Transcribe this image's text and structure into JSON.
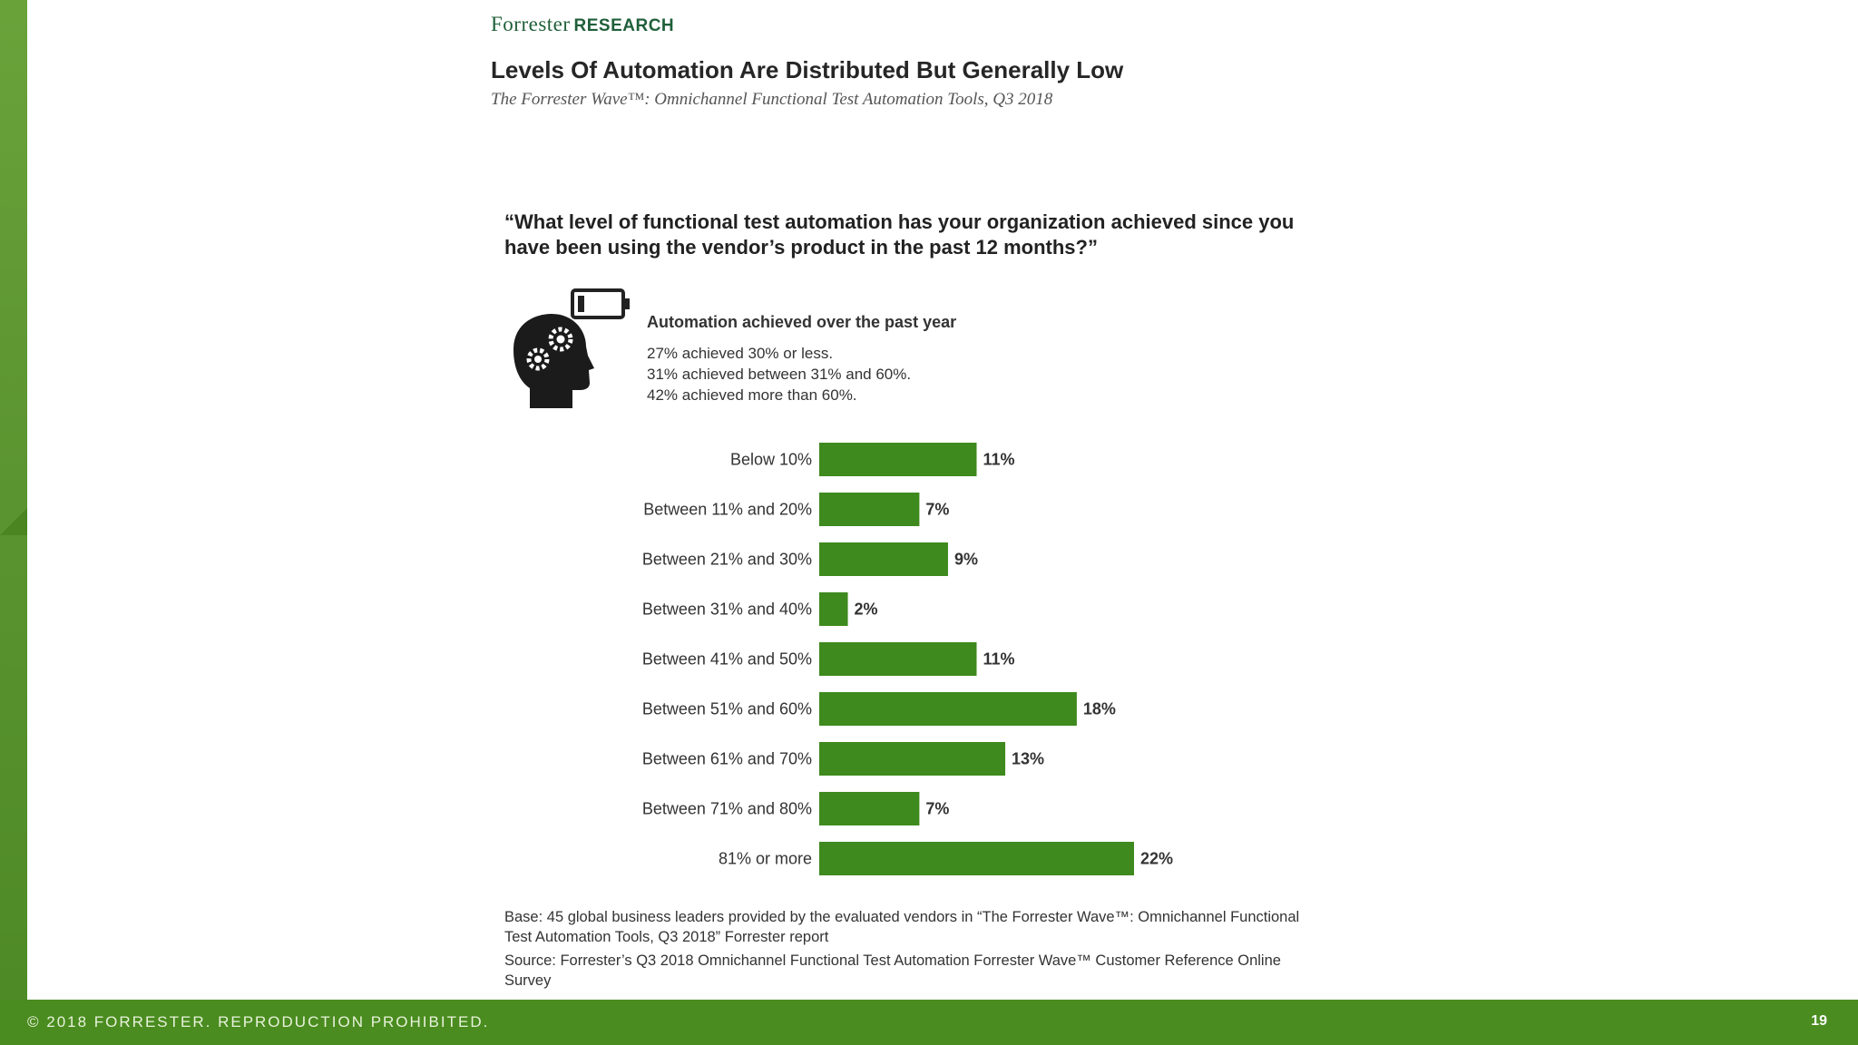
{
  "brand": {
    "name": "Forrester",
    "suffix": "RESEARCH"
  },
  "slide": {
    "title": "Levels Of Automation Are Distributed But Generally Low",
    "subtitle": "The Forrester Wave™: Omnichannel Functional Test Automation Tools, Q3 2018"
  },
  "question": "“What level of functional test automation has your organization achieved since you have been using the vendor’s product in the past 12 months?”",
  "summary": {
    "title": "Automation achieved over the past year",
    "lines": [
      "27% achieved 30% or less.",
      "31% achieved between 31% and 60%.",
      "42% achieved more than 60%."
    ]
  },
  "chart_data": {
    "type": "bar",
    "orientation": "horizontal",
    "categories": [
      "Below 10%",
      "Between 11% and 20%",
      "Between 21% and 30%",
      "Between 31% and 40%",
      "Between 41% and 50%",
      "Between 51% and 60%",
      "Between 61% and 70%",
      "Between 71% and 80%",
      "81% or more"
    ],
    "values": [
      11,
      7,
      9,
      2,
      11,
      18,
      13,
      7,
      22
    ],
    "value_labels": [
      "11%",
      "7%",
      "9%",
      "2%",
      "11%",
      "18%",
      "13%",
      "7%",
      "22%"
    ],
    "xlim": [
      0,
      22
    ],
    "bar_color": "#3e8a1e"
  },
  "notes": {
    "base": "Base: 45 global business leaders provided by the evaluated vendors in “The Forrester Wave™: Omnichannel Functional Test Automation Tools, Q3 2018” Forrester report",
    "source": "Source: Forrester’s Q3 2018 Omnichannel Functional Test Automation Forrester Wave™ Customer Reference Online Survey"
  },
  "footer": {
    "copyright": "© 2018 FORRESTER. REPRODUCTION PROHIBITED.",
    "page": "19"
  },
  "colors": {
    "accent": "#4a8c1f",
    "brand": "#1f5f3a"
  }
}
